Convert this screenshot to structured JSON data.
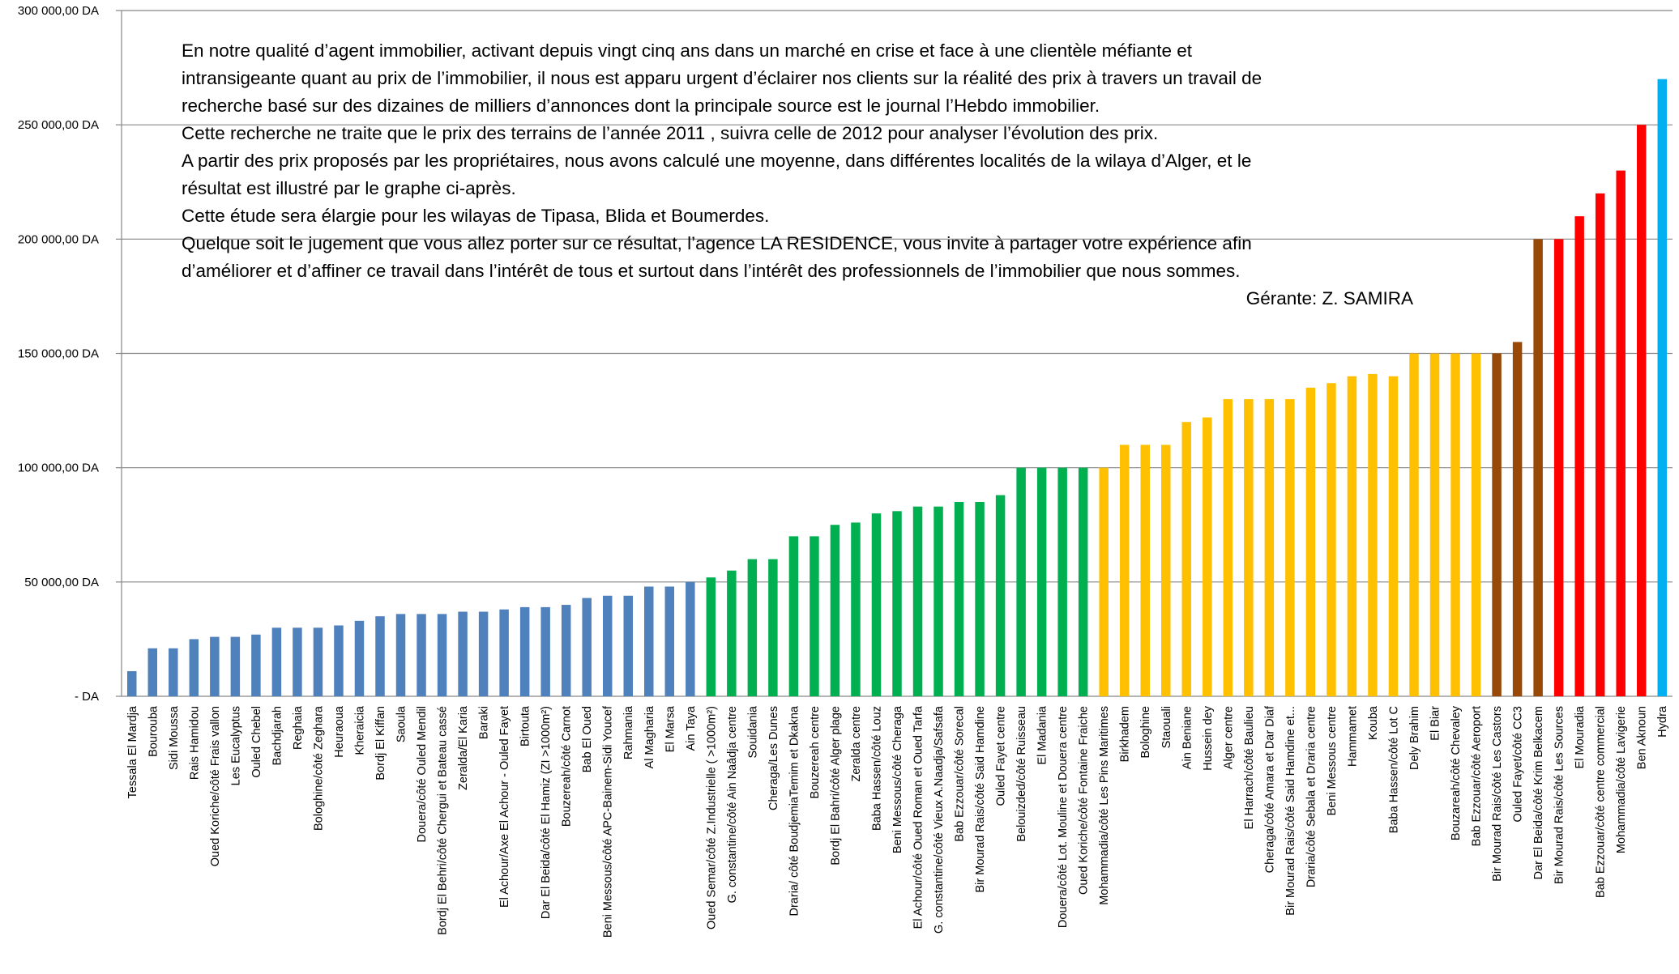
{
  "note": {
    "lines": [
      "En notre qualité d’agent immobilier, activant depuis vingt cinq ans  dans un marché en crise et face à une clientèle méfiante et",
      "intransigeante quant au prix de l’immobilier, il nous est apparu  urgent d’éclairer nos clients sur la réalité des prix à travers un travail de",
      "recherche basé sur des dizaines de milliers d’annonces dont  la principale source est le journal l’Hebdo immobilier.",
      "Cette recherche ne traite que le prix des terrains de l’année 2011 , suivra celle de 2012 pour analyser l’évolution des prix.",
      "A partir des prix proposés par les propriétaires, nous avons  calculé une moyenne, dans différentes localités de la wilaya d’Alger, et le",
      "résultat est illustré par le graphe ci-après.",
      "Cette étude sera élargie pour les wilayas de Tipasa, Blida et Boumerdes.",
      "Quelque soit le jugement que vous allez porter sur ce résultat,  l’agence LA RESIDENCE, vous invite à partager votre expérience afin",
      "d’améliorer et d’affiner ce travail dans l’intérêt de tous et surtout  dans l’intérêt des professionnels de l’immobilier que nous sommes."
    ],
    "signature": "Gérante: Z. SAMIRA"
  },
  "chart_data": {
    "type": "bar",
    "title": "",
    "xlabel": "",
    "ylabel": "",
    "ylim": [
      0,
      300000
    ],
    "yticks": [
      0,
      50000,
      100000,
      150000,
      200000,
      250000,
      300000
    ],
    "ytick_labels": [
      "-  DA",
      "50 000,00 DA",
      "100 000,00 DA",
      "150 000,00 DA",
      "200 000,00 DA",
      "250 000,00 DA",
      "300 000,00 DA"
    ],
    "grid": true,
    "legend": "none",
    "palette": {
      "blue": "#4f81bd",
      "green": "#00b050",
      "yellow": "#ffc000",
      "brown": "#984807",
      "red": "#ff0000",
      "cyan": "#00b0f0"
    },
    "categories": [
      "Tessala El Mardja",
      "Bourouba",
      "Sidi Moussa",
      "Rais Hamidou",
      "Oued Koriche/côté Frais vallon",
      "Les Eucalyptus",
      "Ouled Chebel",
      "Bachdjarah",
      "Reghaia",
      "Bologhine/côté Zeghara",
      "Heuraoua",
      "Kheraicia",
      "Bordj El Kiffan",
      "Saoula",
      "Douera/côté Ouled Mendil",
      "Bordj El Behri/côté Chergui et Bateau cassé",
      "Zeralda/El Karia",
      "Baraki",
      "El Achour/Axe El Achour - Ouled Fayet",
      "Birtouta",
      "Dar El Beida/côté El Hamiz (ZI >1000m²)",
      "Bouzereah/côté Carnot",
      "Bab El Oued",
      "Beni Messous/côté APC-Bainem-Sidi Youcef",
      "Rahmania",
      "Al Magharia",
      "El Marsa",
      "Ain Taya",
      "Oued Semar/côté Z.Industrielle ( >1000m²)",
      "G. constantine/côté Ain  Naâdja centre",
      "Souidania",
      "Cheraga/Les Dunes",
      "Draria/ côté BoudjemiaTemim et Dkakna",
      "Bouzereah centre",
      "Bordj El Bahri/côté Alger plage",
      "Zeralda centre",
      "Baba Hassen/côté Louz",
      "Beni Messous/côté Cheraga",
      "El Achour/côté Oued Roman et Oued Tarfa",
      "G. constantine/côté Vieux A.Naadja/Safsafa",
      "Bab Ezzouar/côté Sorecal",
      "Bir Mourad Rais/côté Said Hamdine",
      "Ouled Fayet centre",
      "Belouizded/côté Ruisseau",
      "El Madania",
      "Douera/côté Lot. Mouline et Douera centre",
      "Oued Koriche/côté Fontaine Fraiche",
      "Mohammadia/côté Les Pins Maritimes",
      "Birkhadem",
      "Bologhine",
      "Staouali",
      "Ain Beniane",
      "Hussein dey",
      "Alger centre",
      "El Harrach/côté Baulieu",
      "Cheraga/côté Amara et Dar Diaf",
      "Bir Mourad Rais/côté Said Hamdine et...",
      "Draria/côté Sebala et Draria centre",
      "Beni Messous centre",
      "Hammamet",
      "Kouba",
      "Baba Hassen/côté Lot C",
      "Dely Brahim",
      "El Biar",
      "Bouzareah/côté Chevaley",
      "Bab Ezzouar/côté Aeroport",
      "Bir Mourad Rais/côté Les Castors",
      "Ouled Fayet/côté CC3",
      "Dar El Beida/côté Krim Belkacem",
      "Bir Mourad Rais/côté Les Sources",
      "El Mouradia",
      "Bab Ezzouar/côté centre commercial",
      "Mohammadia/côté Lavigerie",
      "Ben Aknoun",
      "Hydra"
    ],
    "values": [
      11000,
      21000,
      21000,
      25000,
      26000,
      26000,
      27000,
      30000,
      30000,
      30000,
      31000,
      33000,
      35000,
      36000,
      36000,
      36000,
      37000,
      37000,
      38000,
      39000,
      39000,
      40000,
      43000,
      44000,
      44000,
      48000,
      48000,
      50000,
      52000,
      55000,
      60000,
      60000,
      70000,
      70000,
      75000,
      76000,
      80000,
      81000,
      83000,
      83000,
      85000,
      85000,
      88000,
      100000,
      100000,
      100000,
      100000,
      100000,
      110000,
      110000,
      110000,
      120000,
      122000,
      130000,
      130000,
      130000,
      130000,
      135000,
      137000,
      140000,
      141000,
      140000,
      150000,
      150000,
      150000,
      150000,
      150000,
      155000,
      200000,
      200000,
      210000,
      220000,
      230000,
      250000,
      270000
    ],
    "bar_colors": [
      "blue",
      "blue",
      "blue",
      "blue",
      "blue",
      "blue",
      "blue",
      "blue",
      "blue",
      "blue",
      "blue",
      "blue",
      "blue",
      "blue",
      "blue",
      "blue",
      "blue",
      "blue",
      "blue",
      "blue",
      "blue",
      "blue",
      "blue",
      "blue",
      "blue",
      "blue",
      "blue",
      "blue",
      "green",
      "green",
      "green",
      "green",
      "green",
      "green",
      "green",
      "green",
      "green",
      "green",
      "green",
      "green",
      "green",
      "green",
      "green",
      "green",
      "green",
      "green",
      "green",
      "yellow",
      "yellow",
      "yellow",
      "yellow",
      "yellow",
      "yellow",
      "yellow",
      "yellow",
      "yellow",
      "yellow",
      "yellow",
      "yellow",
      "yellow",
      "yellow",
      "yellow",
      "yellow",
      "yellow",
      "yellow",
      "yellow",
      "brown",
      "brown",
      "brown",
      "red",
      "red",
      "red",
      "red",
      "red",
      "cyan",
      "cyan"
    ]
  }
}
